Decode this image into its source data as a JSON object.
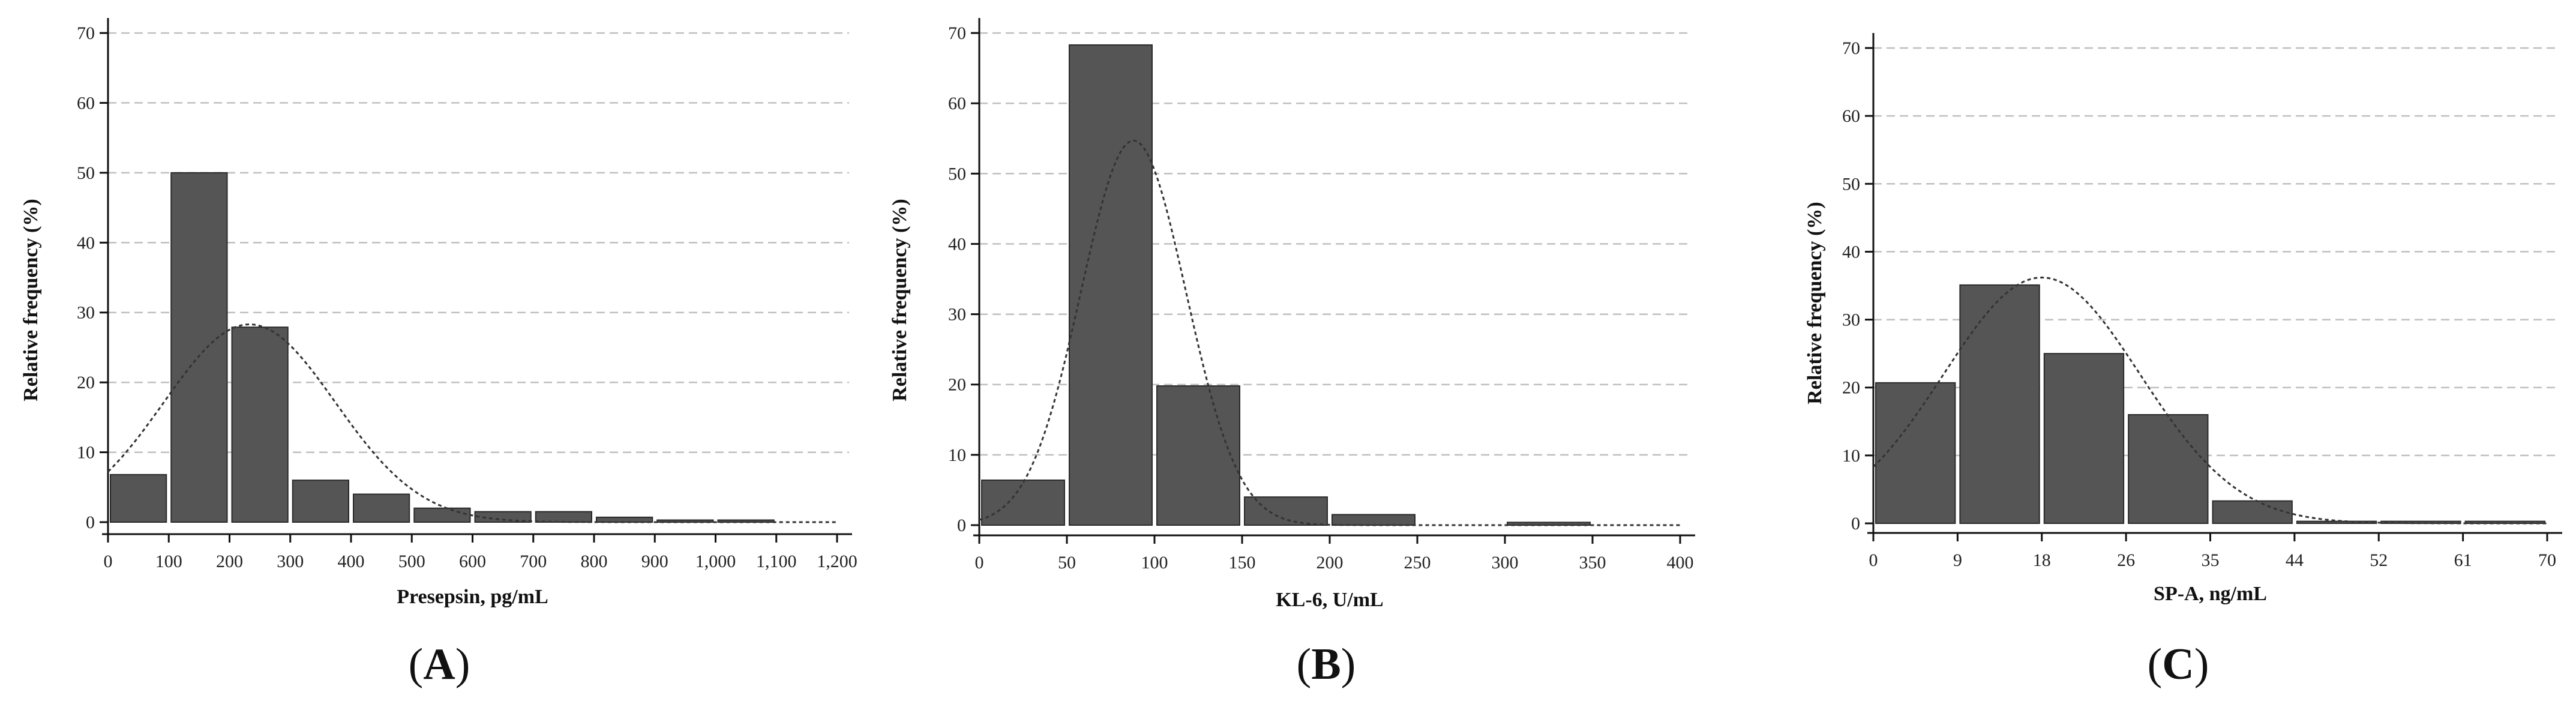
{
  "figure": {
    "panels": [
      {
        "id": "A",
        "label_open": "(",
        "letter": "A",
        "label_close": ")"
      },
      {
        "id": "B",
        "label_open": "(",
        "letter": "B",
        "label_close": ")"
      },
      {
        "id": "C",
        "label_open": "(",
        "letter": "C",
        "label_close": ")"
      }
    ]
  },
  "colors": {
    "bar_fill": "#555555",
    "bar_stroke": "#2a2a2a",
    "grid": "#bfbfbf",
    "axis": "#111111",
    "curve": "#333333"
  },
  "chart_data": [
    {
      "type": "bar",
      "title": "",
      "xlabel": "Presepsin, pg/mL",
      "ylabel": "Relative frequency (%)",
      "ylim": [
        0,
        70
      ],
      "yticks": [
        0,
        10,
        20,
        30,
        40,
        50,
        60,
        70
      ],
      "yticklabels": [
        "0",
        "10",
        "20",
        "30",
        "40",
        "50",
        "60",
        "70"
      ],
      "xlim": [
        0,
        1200
      ],
      "xticks": [
        0,
        100,
        200,
        300,
        400,
        500,
        600,
        700,
        800,
        900,
        1000,
        1100,
        1200
      ],
      "xticklabels": [
        "0",
        "100",
        "200",
        "300",
        "400",
        "500",
        "600",
        "700",
        "800",
        "900",
        "1,000",
        "1,100",
        "1,200"
      ],
      "bins": [
        {
          "from": 0,
          "to": 100,
          "value": 6.8
        },
        {
          "from": 100,
          "to": 200,
          "value": 50.0
        },
        {
          "from": 200,
          "to": 300,
          "value": 27.9
        },
        {
          "from": 300,
          "to": 400,
          "value": 6.0
        },
        {
          "from": 400,
          "to": 500,
          "value": 4.0
        },
        {
          "from": 500,
          "to": 600,
          "value": 2.0
        },
        {
          "from": 600,
          "to": 700,
          "value": 1.5
        },
        {
          "from": 700,
          "to": 800,
          "value": 1.5
        },
        {
          "from": 800,
          "to": 900,
          "value": 0.7
        },
        {
          "from": 900,
          "to": 1000,
          "value": 0.3
        },
        {
          "from": 1000,
          "to": 1100,
          "value": 0.3
        }
      ],
      "normal_curve": {
        "peak": 28.3,
        "mean": 233,
        "sd": 141
      },
      "grid": true,
      "legend": "none"
    },
    {
      "type": "bar",
      "title": "",
      "xlabel": "KL-6, U/mL",
      "ylabel": "Relative frequency (%)",
      "ylim": [
        0,
        70
      ],
      "yticks": [
        0,
        10,
        20,
        30,
        40,
        50,
        60,
        70
      ],
      "yticklabels": [
        "0",
        "10",
        "20",
        "30",
        "40",
        "50",
        "60",
        "70"
      ],
      "xlim": [
        0,
        400
      ],
      "xticks": [
        0,
        50,
        100,
        150,
        200,
        250,
        300,
        350,
        400
      ],
      "xticklabels": [
        "0",
        "50",
        "100",
        "150",
        "200",
        "250",
        "300",
        "350",
        "400"
      ],
      "bins": [
        {
          "from": 0,
          "to": 50,
          "value": 6.4
        },
        {
          "from": 50,
          "to": 100,
          "value": 68.3
        },
        {
          "from": 100,
          "to": 150,
          "value": 19.8
        },
        {
          "from": 150,
          "to": 200,
          "value": 4.0
        },
        {
          "from": 200,
          "to": 250,
          "value": 1.5
        },
        {
          "from": 300,
          "to": 350,
          "value": 0.4
        }
      ],
      "normal_curve": {
        "peak": 54.7,
        "mean": 88,
        "sd": 30
      },
      "grid": true,
      "legend": "none"
    },
    {
      "type": "bar",
      "title": "",
      "xlabel": "SP-A, ng/mL",
      "ylabel": "Relative frequency (%)",
      "ylim": [
        0,
        70
      ],
      "yticks": [
        0,
        10,
        20,
        30,
        40,
        50,
        60,
        70
      ],
      "yticklabels": [
        "0",
        "10",
        "20",
        "30",
        "40",
        "50",
        "60",
        "70"
      ],
      "xlim": [
        0,
        70
      ],
      "xticks": [
        0,
        8.75,
        17.5,
        26.25,
        35,
        43.75,
        52.5,
        61.25,
        70
      ],
      "xticklabels": [
        "0",
        "9",
        "18",
        "26",
        "35",
        "44",
        "52",
        "61",
        "70"
      ],
      "bins": [
        {
          "from": 0,
          "to": 8.75,
          "value": 20.7
        },
        {
          "from": 8.75,
          "to": 17.5,
          "value": 35.1
        },
        {
          "from": 17.5,
          "to": 26.25,
          "value": 25.0
        },
        {
          "from": 26.25,
          "to": 35,
          "value": 16.0
        },
        {
          "from": 35,
          "to": 43.75,
          "value": 3.3
        },
        {
          "from": 43.75,
          "to": 52.5,
          "value": 0.3
        },
        {
          "from": 52.5,
          "to": 61.25,
          "value": 0.3
        },
        {
          "from": 61.25,
          "to": 70,
          "value": 0.3
        }
      ],
      "normal_curve": {
        "peak": 36.2,
        "mean": 17.5,
        "sd": 10.2
      },
      "grid": true,
      "legend": "none"
    }
  ]
}
